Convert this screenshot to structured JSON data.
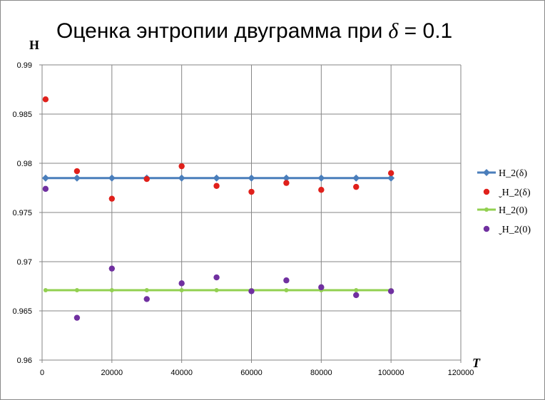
{
  "chart_data": {
    "type": "scatter",
    "title": "Оценка энтропии двуграмма при",
    "title_symbol": "δ",
    "title_suffix": " = 0.1",
    "xlabel": "T",
    "ylabel": "H",
    "xlim": [
      0,
      120000
    ],
    "ylim": [
      0.96,
      0.99
    ],
    "x_ticks": [
      "0",
      "20000",
      "40000",
      "60000",
      "80000",
      "100000",
      "120000"
    ],
    "y_ticks": [
      "0.96",
      "0.965",
      "0.97",
      "0.975",
      "0.98",
      "0.985",
      "0.99"
    ],
    "grid": "horizontal and vertical",
    "legend_position": "right",
    "x": [
      1000,
      10000,
      20000,
      30000,
      40000,
      50000,
      60000,
      70000,
      80000,
      90000,
      100000
    ],
    "series": [
      {
        "name": "H_2(δ)",
        "style": "line-with-diamond-markers",
        "color": "#4a7ebb",
        "values": [
          0.9785,
          0.9785,
          0.9785,
          0.9785,
          0.9785,
          0.9785,
          0.9785,
          0.9785,
          0.9785,
          0.9785,
          0.9785
        ]
      },
      {
        "name": "ˬH_2(δ)",
        "style": "markers",
        "color": "#e0201b",
        "values": [
          0.9865,
          0.9792,
          0.9764,
          0.9784,
          0.9797,
          0.9777,
          0.9771,
          0.978,
          0.9773,
          0.9776,
          0.979
        ]
      },
      {
        "name": "H_2(0)",
        "style": "line-with-dot-markers",
        "color": "#92d050",
        "values": [
          0.9671,
          0.9671,
          0.9671,
          0.9671,
          0.9671,
          0.9671,
          0.9671,
          0.9671,
          0.9671,
          0.9671,
          0.9671
        ]
      },
      {
        "name": "ˬH_2(0)",
        "style": "markers",
        "color": "#7030a0",
        "values": [
          0.9774,
          0.9643,
          0.9693,
          0.9662,
          0.9678,
          0.9684,
          0.967,
          0.9681,
          0.9674,
          0.9666,
          0.967
        ]
      }
    ]
  }
}
